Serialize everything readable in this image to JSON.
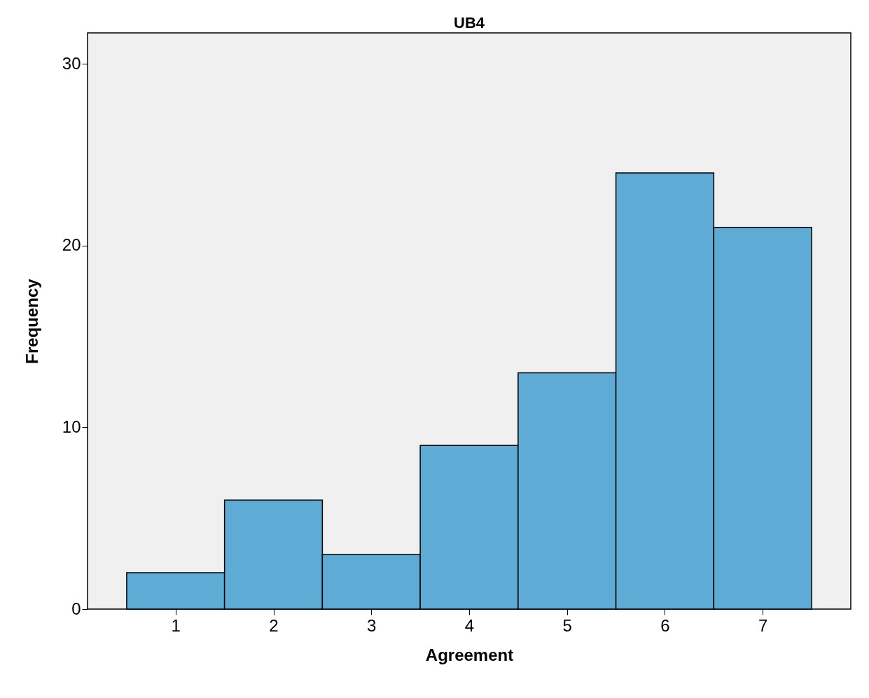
{
  "chart_data": {
    "type": "histogram",
    "title": "UB4",
    "xlabel": "Agreement",
    "ylabel": "Frequency",
    "bins": [
      0.5,
      1.5,
      2.5,
      3.5,
      4.5,
      5.5,
      6.5,
      7.5
    ],
    "values": [
      2,
      6,
      3,
      9,
      13,
      24,
      21
    ],
    "color": "#5eabd6",
    "xlim": [
      0.1,
      7.9
    ],
    "ylim": [
      0,
      31.7
    ],
    "xticks": [
      1,
      2,
      3,
      4,
      5,
      6,
      7
    ],
    "yticks": [
      0,
      10,
      20,
      30
    ],
    "grid": false
  }
}
